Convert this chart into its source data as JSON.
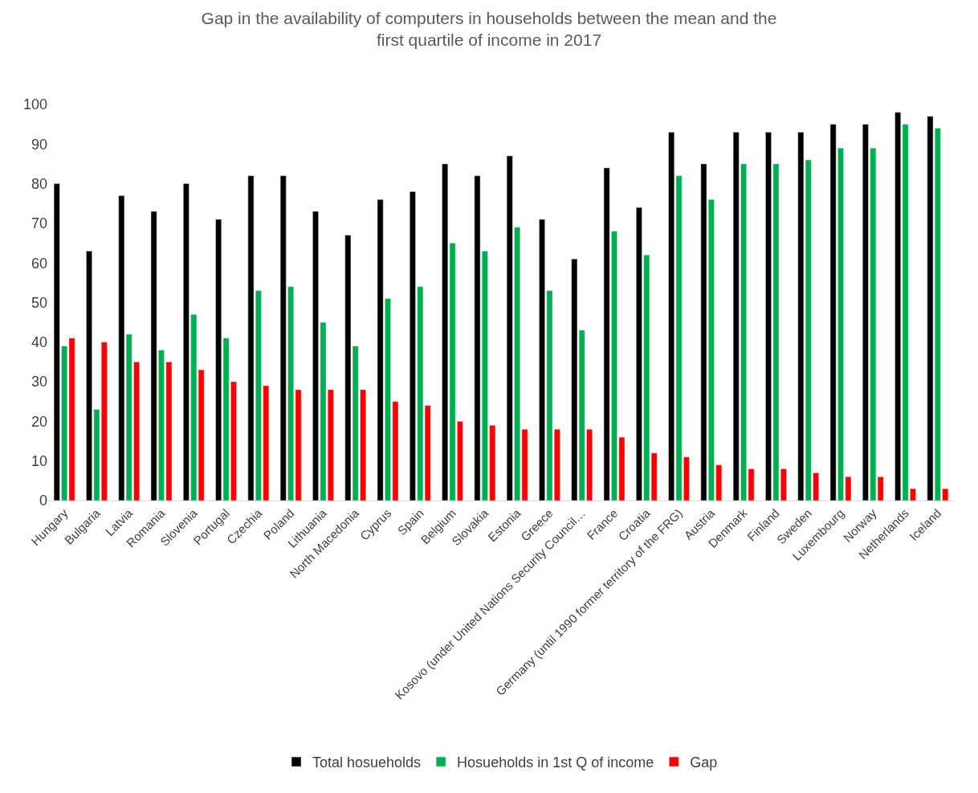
{
  "chart_data": {
    "type": "bar",
    "title": "Gap in the availability of computers in households between the mean and the first quartile of income in 2017",
    "categories": [
      "Hungary",
      "Bulgaria",
      "Latvia",
      "Romania",
      "Slovenia",
      "Portugal",
      "Czechia",
      "Poland",
      "Lithuania",
      "North Macedonia",
      "Cyprus",
      "Spain",
      "Belgium",
      "Slovakia",
      "Estonia",
      "Greece",
      "Kosovo (under United Nations Security Council…",
      "France",
      "Croatia",
      "Germany (until 1990 former territory of the FRG)",
      "Austria",
      "Denmark",
      "Finland",
      "Sweden",
      "Luxembourg",
      "Norway",
      "Netherlands",
      "Iceland"
    ],
    "series": [
      {
        "name": "Total hosueholds",
        "color": "#000000",
        "values": [
          80,
          63,
          77,
          73,
          80,
          71,
          82,
          82,
          73,
          67,
          76,
          78,
          85,
          82,
          87,
          71,
          61,
          84,
          74,
          93,
          85,
          93,
          93,
          93,
          95,
          95,
          98,
          97
        ]
      },
      {
        "name": "Hosueholds in 1st Q of income",
        "color": "#00b050",
        "values": [
          39,
          23,
          42,
          38,
          47,
          41,
          53,
          54,
          45,
          39,
          51,
          54,
          65,
          63,
          69,
          53,
          43,
          68,
          62,
          82,
          76,
          85,
          85,
          86,
          89,
          89,
          95,
          94
        ]
      },
      {
        "name": "Gap",
        "color": "#ff0000",
        "values": [
          41,
          40,
          35,
          35,
          33,
          30,
          29,
          28,
          28,
          28,
          25,
          24,
          20,
          19,
          18,
          18,
          18,
          16,
          12,
          11,
          9,
          8,
          8,
          7,
          6,
          6,
          3,
          3
        ]
      }
    ],
    "ylim": [
      0,
      100
    ],
    "yticks": [
      0,
      10,
      20,
      30,
      40,
      50,
      60,
      70,
      80,
      90,
      100
    ],
    "grid": false,
    "legend": "bottom"
  }
}
